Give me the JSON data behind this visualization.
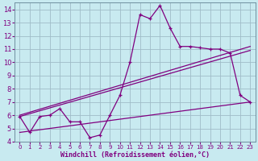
{
  "title": "",
  "xlabel": "Windchill (Refroidissement éolien,°C)",
  "ylabel": "",
  "background_color": "#c8eaf0",
  "grid_color": "#a0bcc8",
  "line_color": "#800080",
  "xlim": [
    -0.5,
    23.5
  ],
  "ylim": [
    4,
    14.5
  ],
  "xticks": [
    0,
    1,
    2,
    3,
    4,
    5,
    6,
    7,
    8,
    9,
    10,
    11,
    12,
    13,
    14,
    15,
    16,
    17,
    18,
    19,
    20,
    21,
    22,
    23
  ],
  "yticks": [
    4,
    5,
    6,
    7,
    8,
    9,
    10,
    11,
    12,
    13,
    14
  ],
  "series_main": {
    "x": [
      0,
      1,
      2,
      3,
      4,
      5,
      6,
      7,
      8,
      9,
      10,
      11,
      12,
      13,
      14,
      15,
      16,
      17,
      18,
      19,
      20,
      21,
      22,
      23
    ],
    "y": [
      5.9,
      4.7,
      5.9,
      6.0,
      6.5,
      5.5,
      5.5,
      4.3,
      4.5,
      6.0,
      7.5,
      10.0,
      13.6,
      13.3,
      14.3,
      12.6,
      11.2,
      11.2,
      11.1,
      11.0,
      11.0,
      10.7,
      7.5,
      7.0
    ]
  },
  "series_lines": [
    {
      "x": [
        0,
        23
      ],
      "y": [
        6.0,
        11.2
      ]
    },
    {
      "x": [
        0,
        23
      ],
      "y": [
        5.9,
        10.9
      ]
    },
    {
      "x": [
        0,
        23
      ],
      "y": [
        4.7,
        7.0
      ]
    }
  ]
}
